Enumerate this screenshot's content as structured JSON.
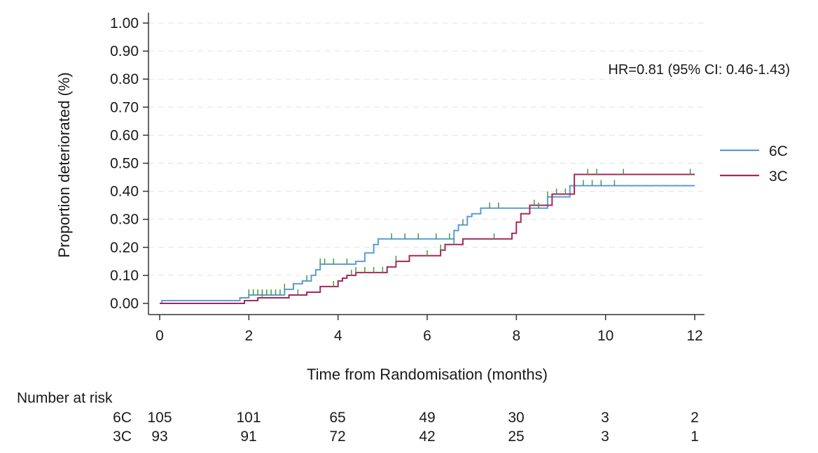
{
  "chart_data": {
    "type": "line",
    "subtype": "kaplan-meier cumulative incidence",
    "title": "",
    "xlabel": "Time from Randomisation (months)",
    "ylabel": "Proportion deteriorated (%)",
    "xlim": [
      0,
      12
    ],
    "ylim": [
      0,
      1
    ],
    "x_ticks": [
      "0",
      "2",
      "4",
      "6",
      "8",
      "10",
      "12"
    ],
    "y_ticks": [
      "0.00",
      "0.10",
      "0.20",
      "0.30",
      "0.40",
      "0.50",
      "0.60",
      "0.70",
      "0.80",
      "0.90",
      "1.00"
    ],
    "grid": "horizontal dashed",
    "legend_position": "right",
    "annotation": "HR=0.81 (95% CI: 0.46-1.43)",
    "series": [
      {
        "name": "6C",
        "color": "#5b9bd5",
        "steps": [
          [
            0,
            0.0
          ],
          [
            0.05,
            0.01
          ],
          [
            1.8,
            0.02
          ],
          [
            2.0,
            0.03
          ],
          [
            2.8,
            0.05
          ],
          [
            3.0,
            0.07
          ],
          [
            3.2,
            0.08
          ],
          [
            3.4,
            0.1
          ],
          [
            3.5,
            0.12
          ],
          [
            3.6,
            0.14
          ],
          [
            4.4,
            0.15
          ],
          [
            4.6,
            0.18
          ],
          [
            4.8,
            0.21
          ],
          [
            4.9,
            0.23
          ],
          [
            6.6,
            0.26
          ],
          [
            6.7,
            0.28
          ],
          [
            6.9,
            0.31
          ],
          [
            7.0,
            0.32
          ],
          [
            7.2,
            0.34
          ],
          [
            8.7,
            0.38
          ],
          [
            9.2,
            0.42
          ],
          [
            12.0,
            0.42
          ]
        ],
        "censor_times": [
          2.0,
          2.1,
          2.2,
          2.3,
          2.4,
          2.5,
          2.6,
          2.7,
          2.8,
          3.3,
          3.6,
          3.7,
          3.9,
          4.2,
          5.2,
          5.5,
          5.8,
          6.2,
          6.5,
          6.8,
          7.4,
          7.6,
          8.5,
          8.7,
          9.5,
          9.7,
          9.9,
          10.2
        ]
      },
      {
        "name": "3C",
        "color": "#a4285a",
        "steps": [
          [
            0,
            0.0
          ],
          [
            1.9,
            0.01
          ],
          [
            2.2,
            0.02
          ],
          [
            2.9,
            0.03
          ],
          [
            3.3,
            0.04
          ],
          [
            3.6,
            0.06
          ],
          [
            4.0,
            0.08
          ],
          [
            4.1,
            0.09
          ],
          [
            4.2,
            0.1
          ],
          [
            4.4,
            0.11
          ],
          [
            5.1,
            0.13
          ],
          [
            5.3,
            0.15
          ],
          [
            5.6,
            0.17
          ],
          [
            6.3,
            0.19
          ],
          [
            6.4,
            0.21
          ],
          [
            6.8,
            0.23
          ],
          [
            7.9,
            0.25
          ],
          [
            8.0,
            0.29
          ],
          [
            8.1,
            0.32
          ],
          [
            8.3,
            0.35
          ],
          [
            8.8,
            0.39
          ],
          [
            9.3,
            0.46
          ],
          [
            12.0,
            0.46
          ]
        ],
        "censor_times": [
          2.3,
          3.1,
          3.9,
          4.3,
          4.4,
          4.6,
          4.8,
          5.0,
          5.3,
          6.0,
          6.3,
          6.6,
          7.5,
          8.4,
          8.9,
          9.1,
          9.6,
          9.8,
          10.4,
          11.9
        ]
      }
    ]
  },
  "risk_table": {
    "title": "Number at risk",
    "rows": [
      {
        "label": "6C",
        "values": [
          "105",
          "101",
          "65",
          "49",
          "30",
          "3",
          "2"
        ]
      },
      {
        "label": "3C",
        "values": [
          "93",
          "91",
          "72",
          "42",
          "25",
          "3",
          "1"
        ]
      }
    ]
  }
}
